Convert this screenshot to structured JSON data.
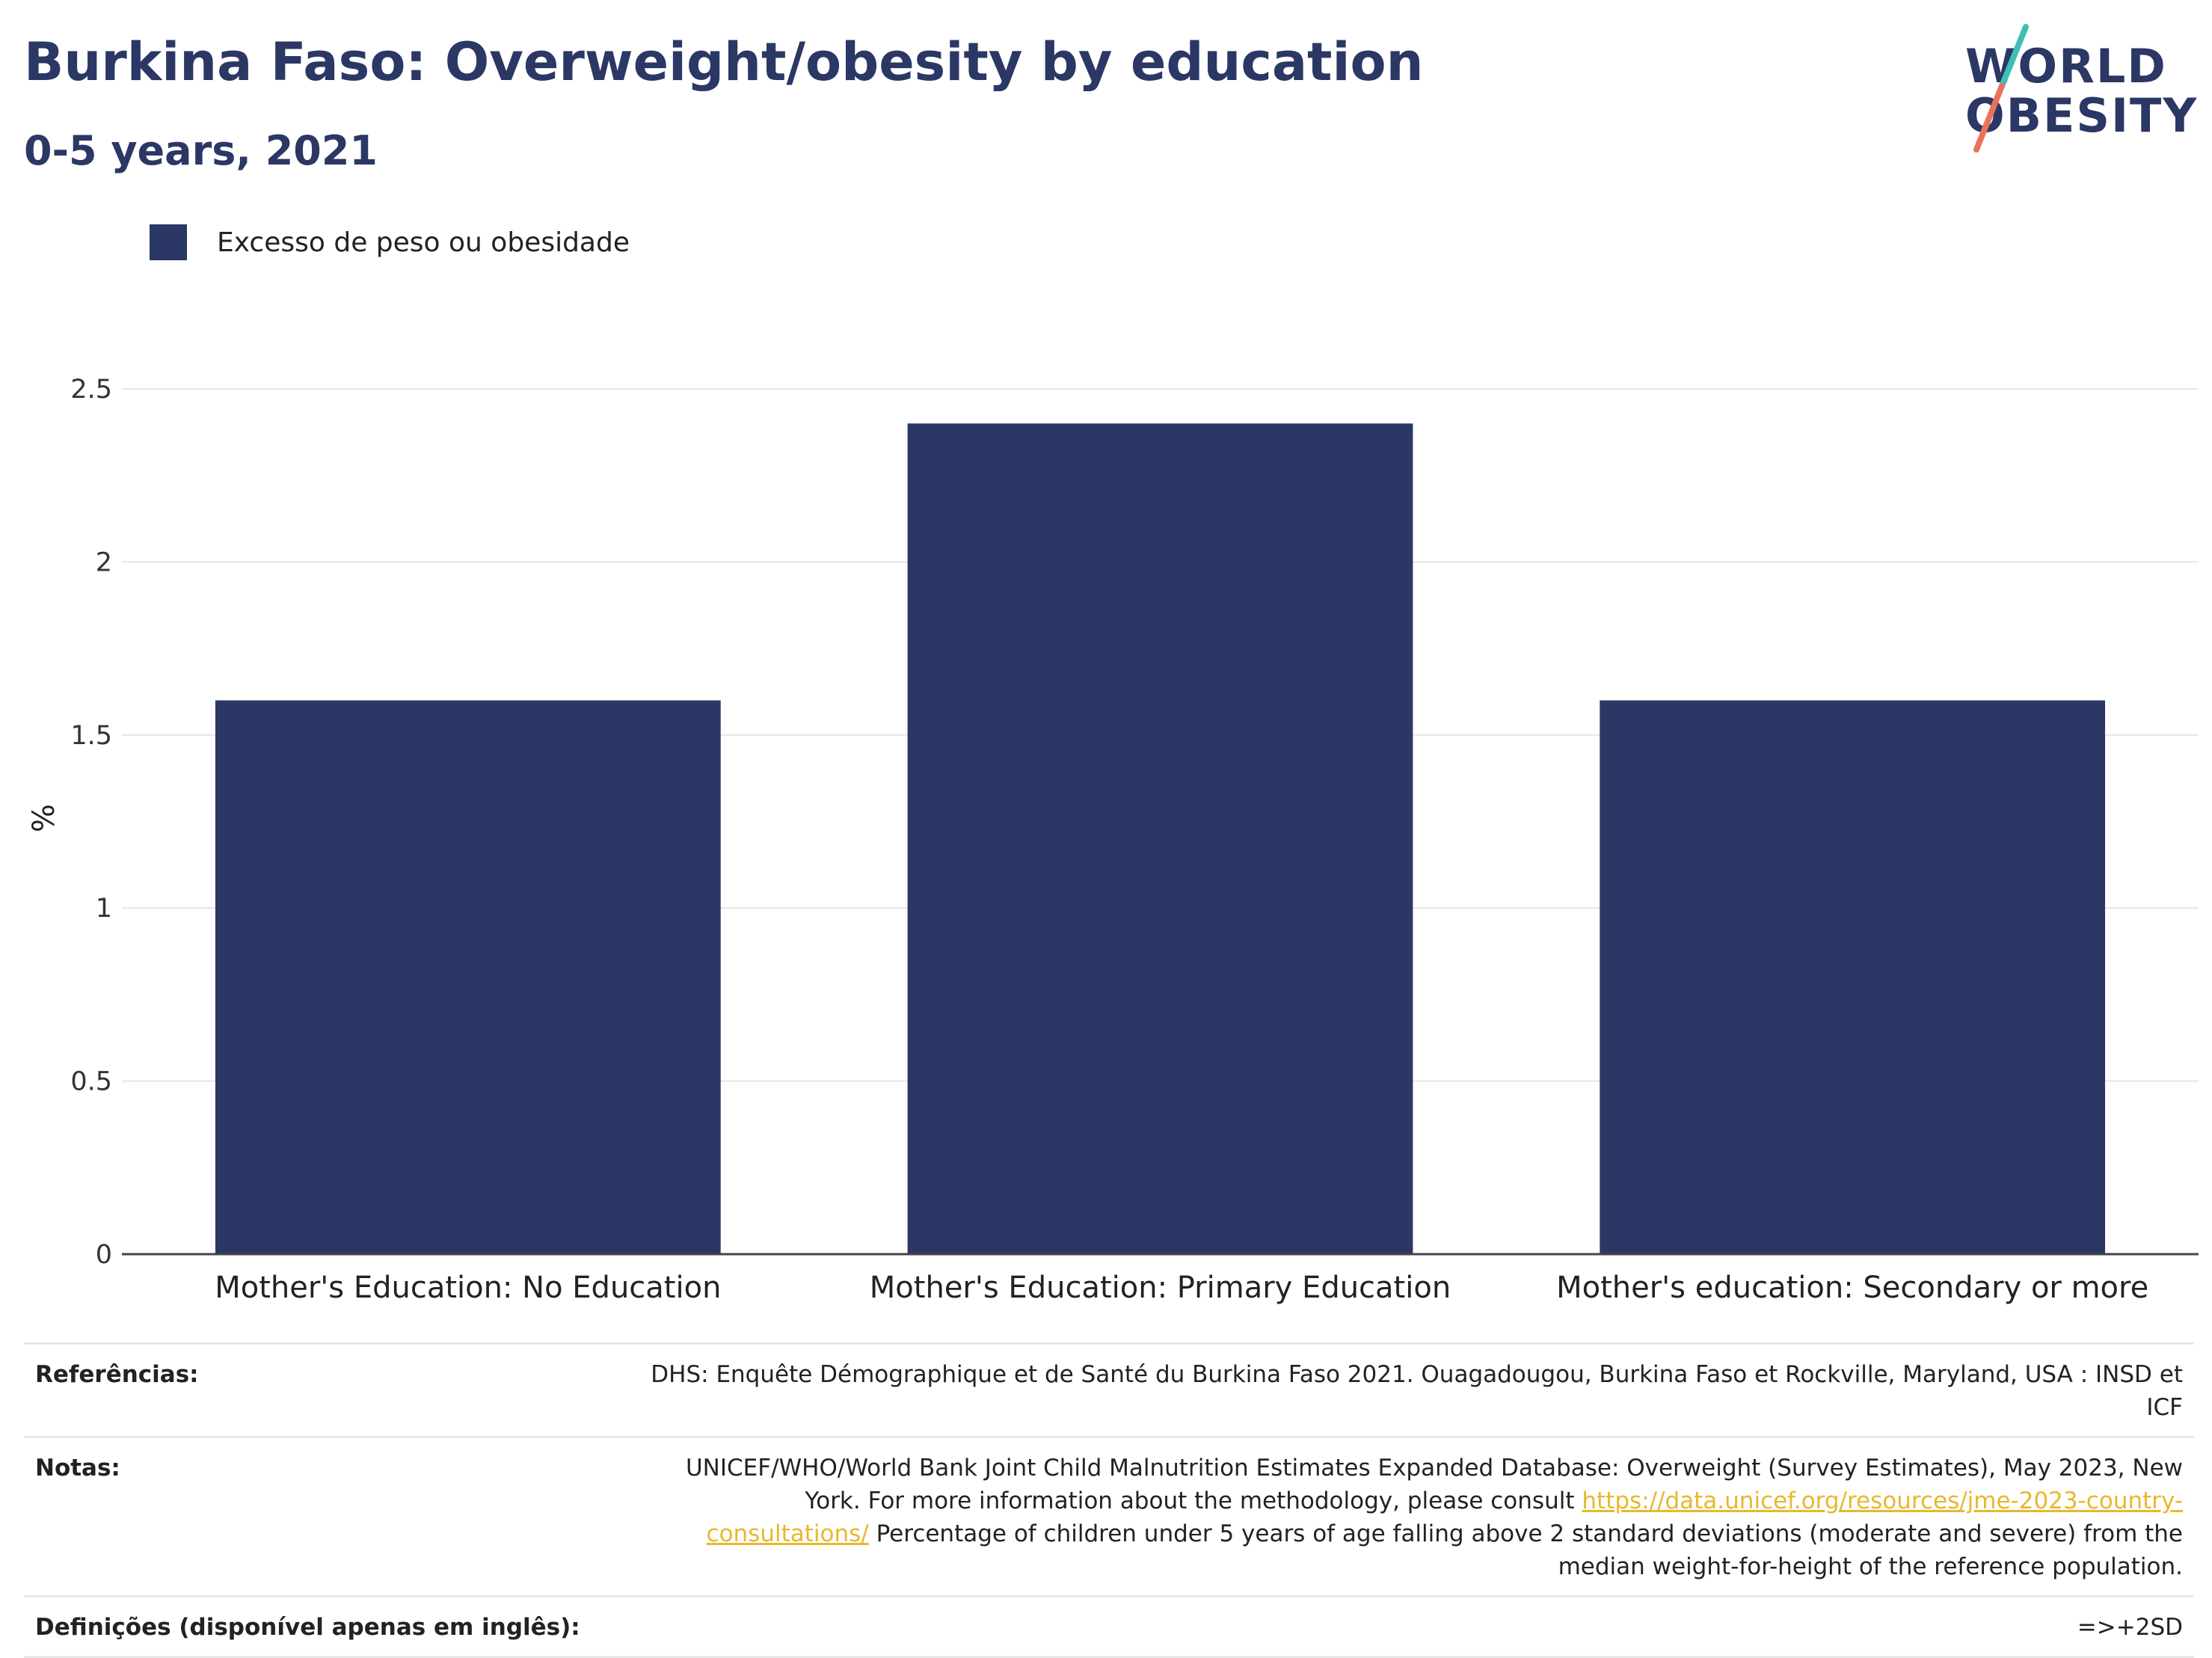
{
  "header": {
    "title": "Burkina Faso: Overweight/obesity by education",
    "subtitle": "0-5 years, 2021"
  },
  "logo": {
    "line1": "WORLD",
    "line2": "OBESITY",
    "text_color": "#2b3764",
    "slash_colors": [
      "#3dbfb8",
      "#e8735a"
    ]
  },
  "legend": {
    "label": "Excesso de peso ou obesidade",
    "color": "#2b3764"
  },
  "chart_data": {
    "type": "bar",
    "categories": [
      "Mother's Education: No Education",
      "Mother's Education: Primary Education",
      "Mother's education: Secondary or more"
    ],
    "series": [
      {
        "name": "Excesso de peso ou obesidade",
        "values": [
          1.6,
          2.4,
          1.6
        ],
        "color": "#2b3764"
      }
    ],
    "ylabel": "%",
    "xlabel": "",
    "ylim": [
      0,
      2.5
    ],
    "yticks": [
      0,
      0.5,
      1,
      1.5,
      2,
      2.5
    ],
    "ytick_labels": [
      "0",
      "0.5",
      "1",
      "1.5",
      "2",
      "2.5"
    ],
    "grid": true,
    "legend_position": "top-left"
  },
  "footer": {
    "references_label": "Referências:",
    "references_text": "DHS: Enquête Démographique et de Santé du Burkina Faso 2021. Ouagadougou, Burkina Faso et Rockville, Maryland, USA : INSD et ICF",
    "notes_label": "Notas:",
    "notes_text_1": "UNICEF/WHO/World Bank Joint Child Malnutrition Estimates Expanded Database: Overweight (Survey Estimates), May 2023, New York. For more information about the methodology, please consult",
    "notes_link": "https://data.unicef.org/resources/jme-2023-country-consultations/",
    "notes_text_2": "Percentage of children under 5 years of age falling above 2 standard deviations (moderate and severe) from the median weight-for-height of the reference population.",
    "definitions_label": "Definições (disponível apenas em inglês):",
    "definitions_text": "=>+2SD",
    "link_color": "#e8b82d"
  }
}
